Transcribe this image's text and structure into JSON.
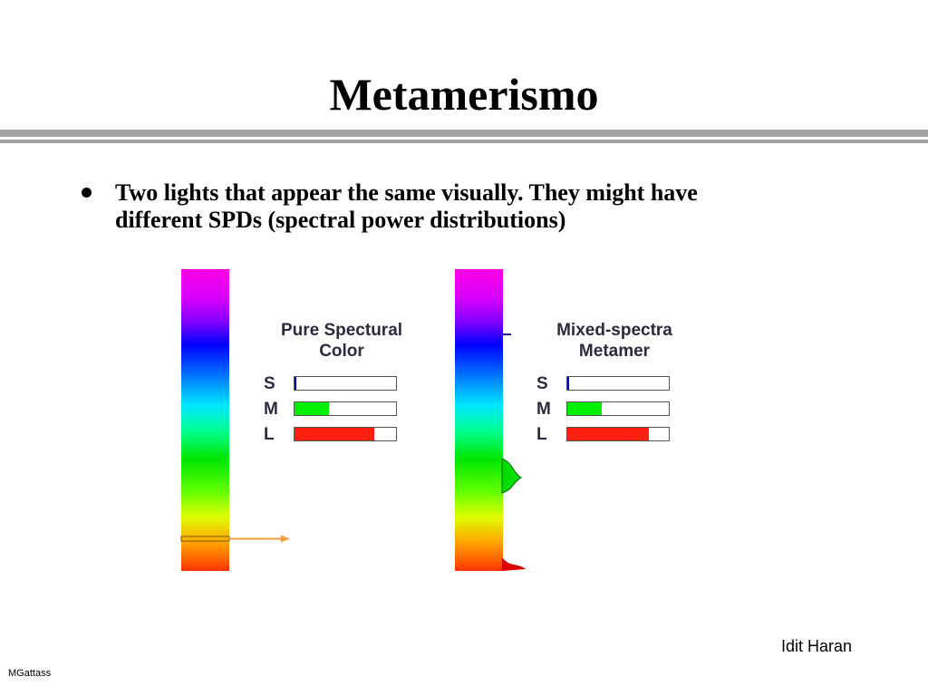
{
  "slide": {
    "title": "Metamerismo",
    "bullet": "Two lights that appear the same visually. They might have different SPDs (spectral power distributions)",
    "author": "Idit Haran",
    "footer": "MGattass"
  },
  "figure": {
    "left_panel": {
      "title_line1": "Pure Spectural",
      "title_line2": "Color",
      "cones": [
        {
          "label": "S",
          "fraction": 0.02,
          "color": "#0000cc"
        },
        {
          "label": "M",
          "fraction": 0.34,
          "color": "#00ee00"
        },
        {
          "label": "L",
          "fraction": 0.79,
          "color": "#ff2010"
        }
      ]
    },
    "right_panel": {
      "title_line1": "Mixed-spectra",
      "title_line2": "Metamer",
      "cones": [
        {
          "label": "S",
          "fraction": 0.02,
          "color": "#0000cc"
        },
        {
          "label": "M",
          "fraction": 0.34,
          "color": "#00ee00"
        },
        {
          "label": "L",
          "fraction": 0.8,
          "color": "#ff2010"
        }
      ]
    },
    "colors": {
      "arrow": "#f0a040",
      "green_peak": "#00dd00",
      "red_peak": "#dd0000",
      "blue_tick": "#1a1aa0"
    }
  }
}
